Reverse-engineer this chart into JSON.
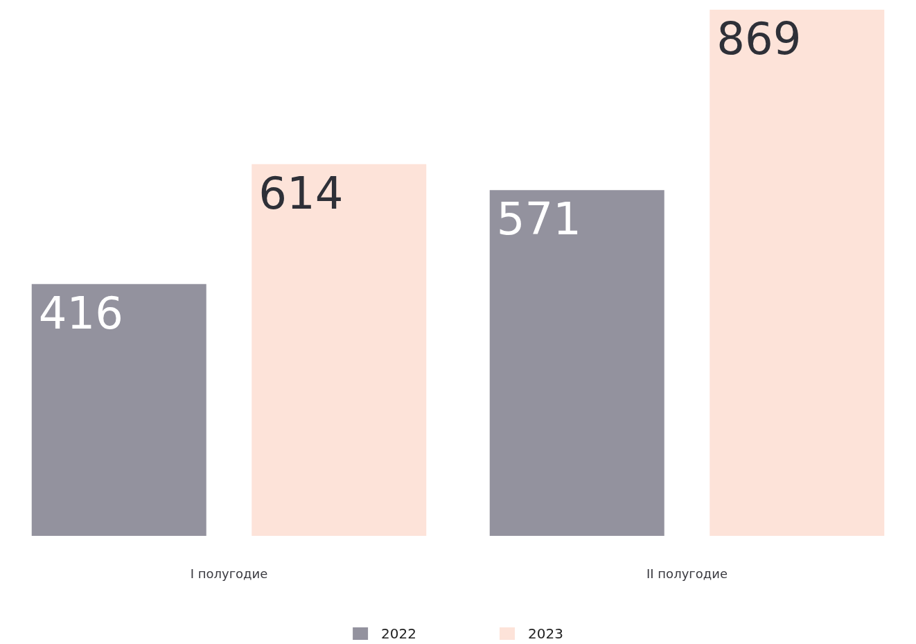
{
  "chart_data": {
    "type": "bar",
    "categories": [
      "I полугодие",
      "II полугодие"
    ],
    "series": [
      {
        "name": "2022",
        "color": "#93929e",
        "values": [
          416,
          571
        ]
      },
      {
        "name": "2023",
        "color": "#fde3d9",
        "values": [
          614,
          869
        ]
      }
    ],
    "data_labels": true,
    "legend": "bottom"
  }
}
